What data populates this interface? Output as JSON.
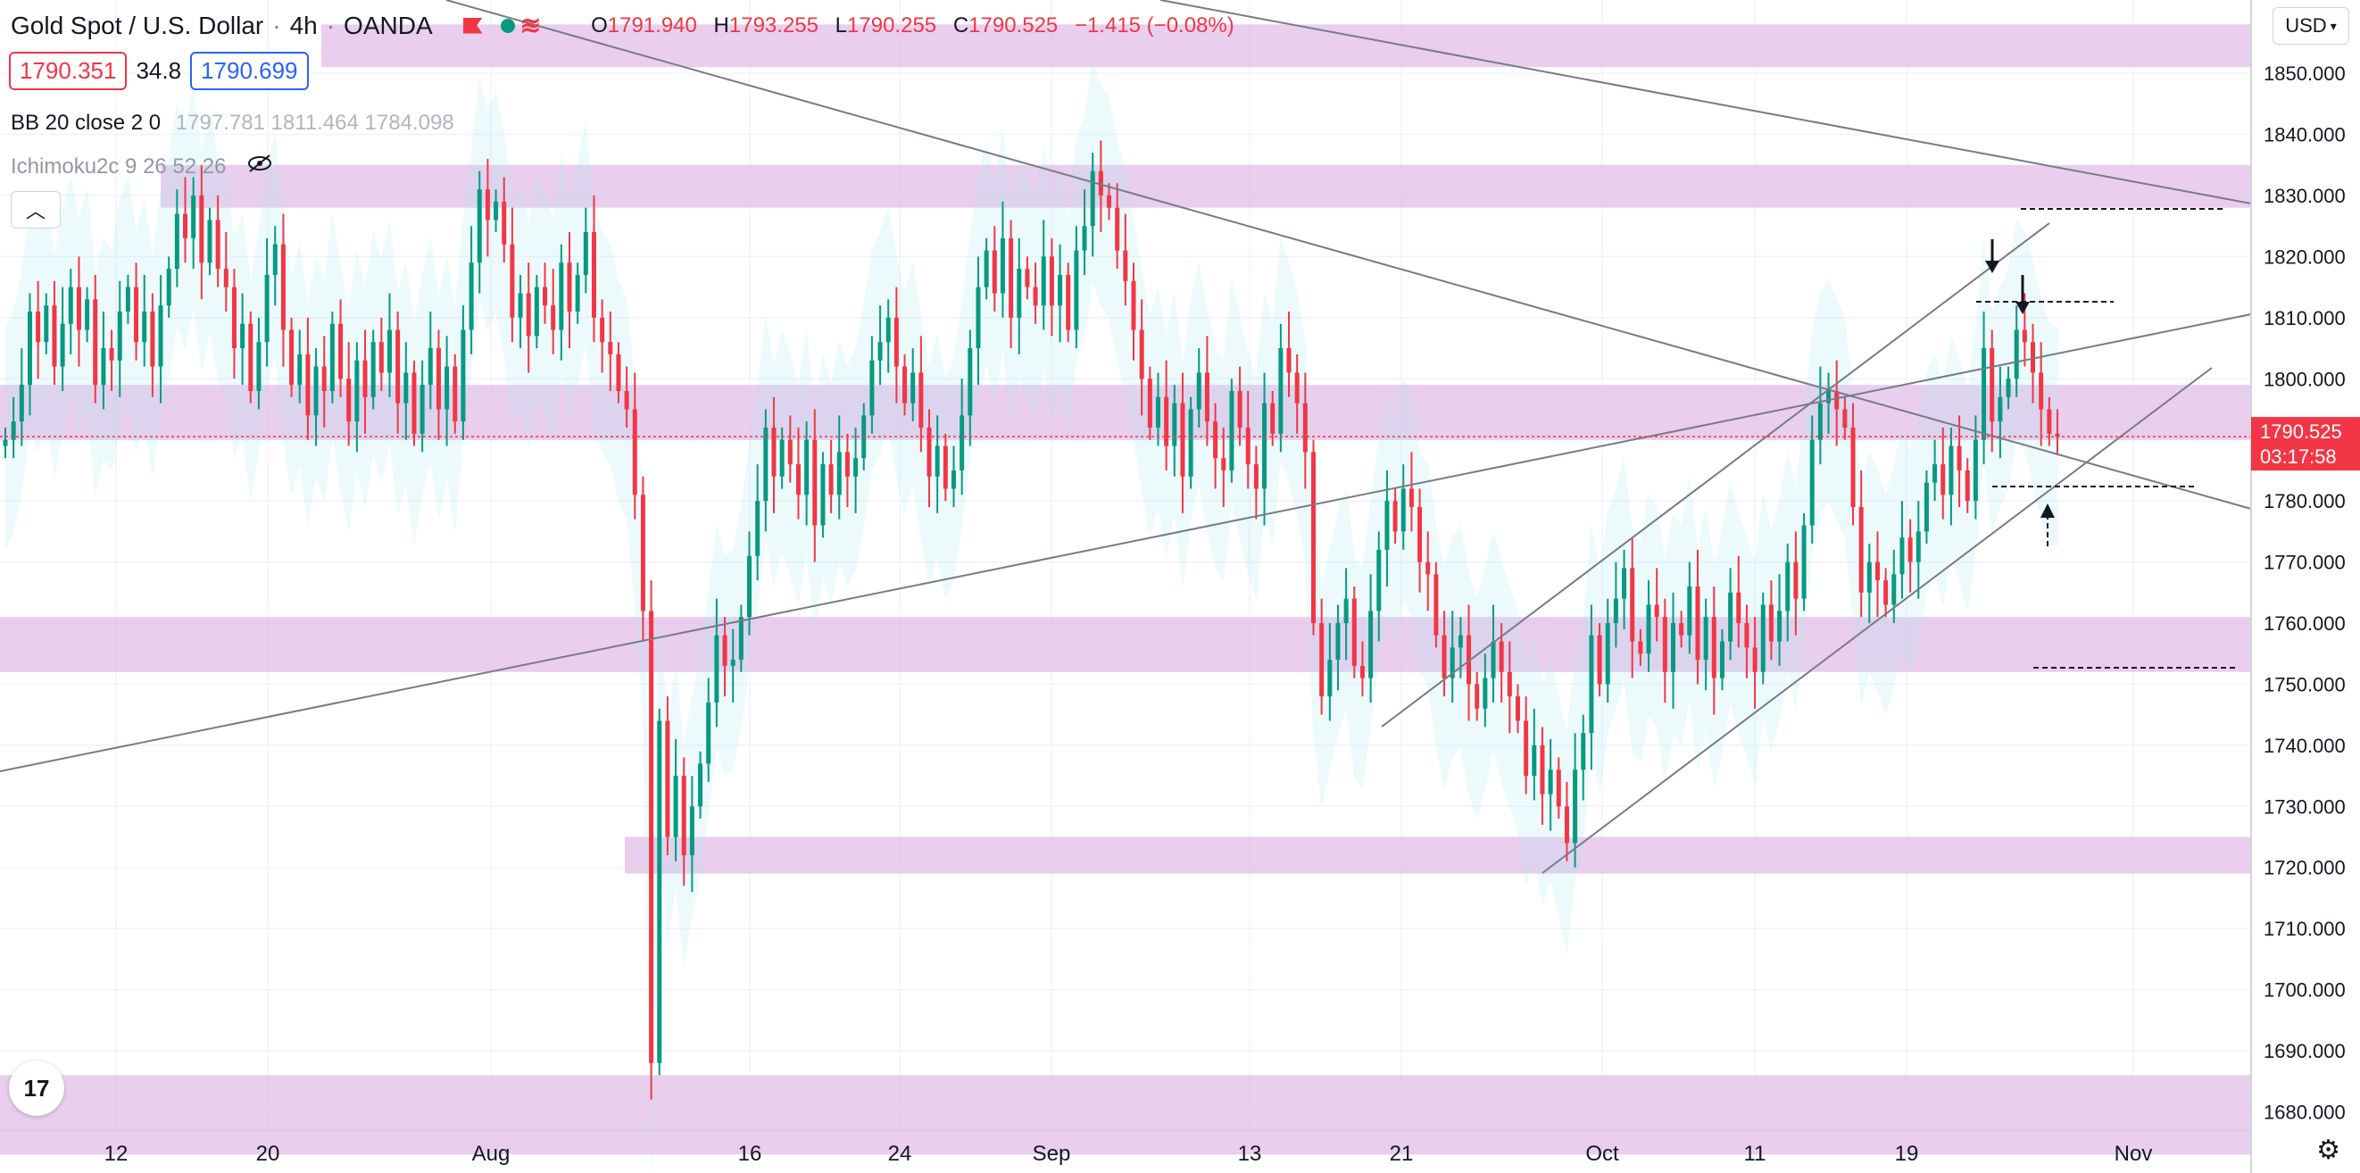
{
  "header": {
    "symbol": "Gold Spot / U.S. Dollar",
    "interval": "4h",
    "broker": "OANDA",
    "open_label": "O",
    "open": "1791.940",
    "high_label": "H",
    "high": "1793.255",
    "low_label": "L",
    "low": "1790.255",
    "close_label": "C",
    "close": "1790.525",
    "change": "−1.415 (−0.08%)"
  },
  "quote": {
    "bid": "1790.351",
    "spread": "34.8",
    "ask": "1790.699"
  },
  "indicators": {
    "bb": {
      "name": "BB 20 close 2 0",
      "values": "1797.781  1811.464  1784.098"
    },
    "ichimoku": {
      "name": "Ichimoku2c 9 26 52 26"
    }
  },
  "currency_button": "USD",
  "price_scale": {
    "labels": [
      "1850.000",
      "1840.000",
      "1830.000",
      "1820.000",
      "1810.000",
      "1800.000",
      "1790.000",
      "1780.000",
      "1770.000",
      "1760.000",
      "1750.000",
      "1740.000",
      "1730.000",
      "1720.000",
      "1710.000",
      "1700.000",
      "1690.000",
      "1680.000"
    ],
    "current_price": "1790.525",
    "countdown": "03:17:58"
  },
  "time_axis": [
    "12",
    "20",
    "Aug",
    "16",
    "24",
    "Sep",
    "13",
    "21",
    "Oct",
    "11",
    "19",
    "Nov"
  ],
  "colors": {
    "up": "#089981",
    "down": "#f23645",
    "zone": "#e1bee7",
    "price_tag": "#f23645"
  },
  "chart_data": {
    "type": "candlestick",
    "symbol": "XAUUSD",
    "interval": "4h",
    "ylim": [
      1677,
      1862
    ],
    "closes": [
      1790,
      1793,
      1799,
      1811,
      1806,
      1812,
      1802,
      1809,
      1815,
      1808,
      1813,
      1799,
      1805,
      1803,
      1811,
      1815,
      1806,
      1811,
      1802,
      1812,
      1818,
      1827,
      1823,
      1830,
      1819,
      1826,
      1818,
      1815,
      1805,
      1809,
      1798,
      1806,
      1817,
      1822,
      1808,
      1799,
      1804,
      1794,
      1802,
      1798,
      1809,
      1800,
      1793,
      1803,
      1797,
      1806,
      1801,
      1808,
      1796,
      1801,
      1791,
      1799,
      1805,
      1795,
      1802,
      1793,
      1808,
      1819,
      1831,
      1826,
      1829,
      1822,
      1810,
      1814,
      1807,
      1815,
      1812,
      1808,
      1819,
      1811,
      1817,
      1824,
      1810,
      1806,
      1804,
      1798,
      1795,
      1781,
      1762,
      1688,
      1744,
      1725,
      1735,
      1722,
      1730,
      1737,
      1747,
      1758,
      1753,
      1754,
      1761,
      1771,
      1780,
      1792,
      1784,
      1790,
      1786,
      1781,
      1790,
      1776,
      1786,
      1781,
      1788,
      1784,
      1787,
      1794,
      1803,
      1806,
      1810,
      1802,
      1796,
      1801,
      1792,
      1784,
      1789,
      1782,
      1785,
      1794,
      1805,
      1815,
      1821,
      1814,
      1823,
      1810,
      1818,
      1815,
      1812,
      1820,
      1812,
      1817,
      1808,
      1821,
      1825,
      1834,
      1830,
      1828,
      1821,
      1816,
      1808,
      1800,
      1792,
      1797,
      1789,
      1796,
      1784,
      1795,
      1801,
      1793,
      1787,
      1785,
      1798,
      1792,
      1786,
      1782,
      1796,
      1791,
      1805,
      1801,
      1796,
      1788,
      1760,
      1748,
      1754,
      1760,
      1764,
      1753,
      1751,
      1762,
      1772,
      1780,
      1775,
      1782,
      1779,
      1770,
      1768,
      1758,
      1751,
      1756,
      1758,
      1750,
      1746,
      1751,
      1757,
      1752,
      1748,
      1744,
      1735,
      1740,
      1732,
      1736,
      1730,
      1724,
      1736,
      1742,
      1758,
      1750,
      1760,
      1764,
      1769,
      1757,
      1755,
      1763,
      1761,
      1752,
      1760,
      1758,
      1766,
      1754,
      1761,
      1751,
      1757,
      1765,
      1760,
      1756,
      1752,
      1763,
      1757,
      1762,
      1770,
      1764,
      1776,
      1790,
      1796,
      1798,
      1795,
      1792,
      1779,
      1765,
      1770,
      1767,
      1763,
      1768,
      1774,
      1770,
      1775,
      1783,
      1786,
      1781,
      1789,
      1785,
      1780,
      1790,
      1805,
      1793,
      1797,
      1800,
      1808,
      1806,
      1801,
      1795,
      1791,
      1790.5
    ],
    "support_resistance_zones": [
      [
        1851,
        1858
      ],
      [
        1828,
        1835
      ],
      [
        1790,
        1799
      ],
      [
        1752,
        1761
      ],
      [
        1719,
        1725
      ],
      [
        1673,
        1686
      ]
    ],
    "annotations": [
      "down arrows at recent highs",
      "dashed target lines",
      "ascending channel",
      "descending trendlines"
    ]
  }
}
